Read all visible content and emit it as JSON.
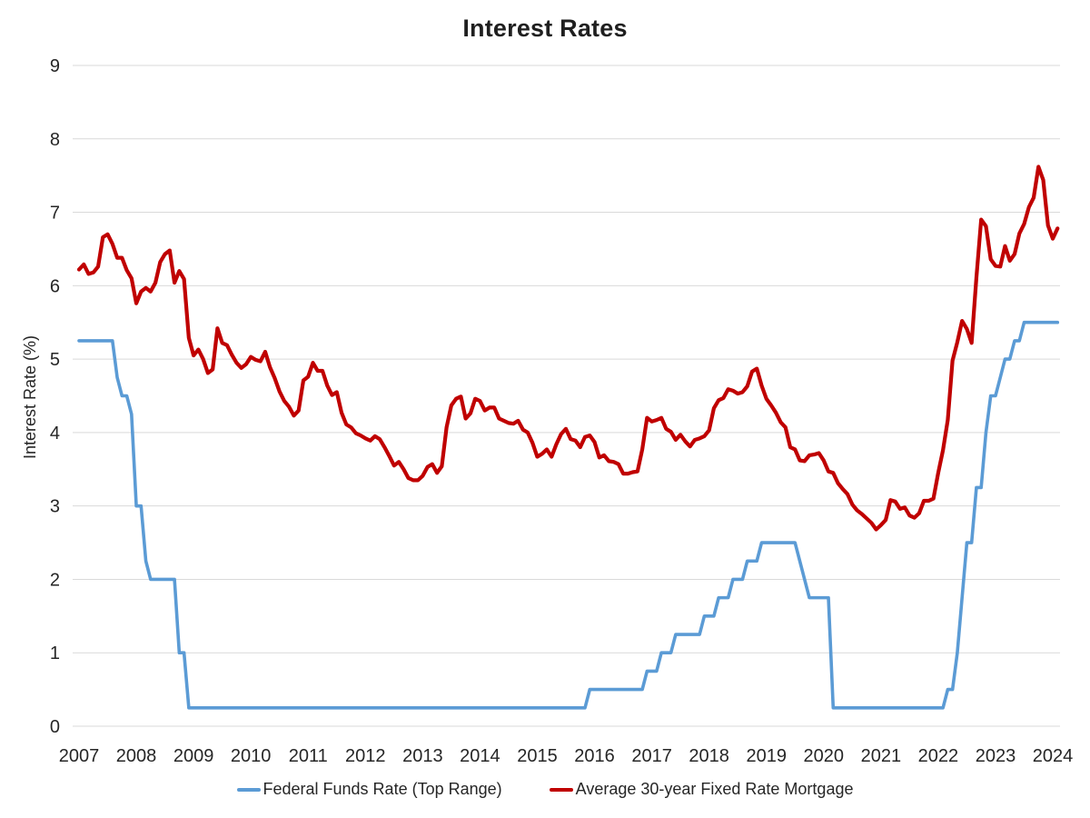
{
  "chart_data": {
    "type": "line",
    "title": "Interest Rates",
    "xlabel": "",
    "ylabel": "Interest Rate (%)",
    "ylim": [
      0,
      9
    ],
    "y_ticks": [
      0,
      1,
      2,
      3,
      4,
      5,
      6,
      7,
      8,
      9
    ],
    "x_ticks": [
      "2007",
      "2008",
      "2009",
      "2010",
      "2011",
      "2012",
      "2013",
      "2014",
      "2015",
      "2016",
      "2017",
      "2018",
      "2019",
      "2020",
      "2021",
      "2022",
      "2023",
      "2024"
    ],
    "x_unit": "monthly",
    "x_range": [
      "2007-01",
      "2024-02"
    ],
    "grid": "horizontal",
    "legend_position": "bottom",
    "background_color": "#ffffff",
    "gridline_color": "#d9d9d9",
    "text_color": "#262626",
    "series": [
      {
        "name": "Federal Funds Rate (Top Range)",
        "color": "#5b9bd5",
        "values": [
          5.25,
          5.25,
          5.25,
          5.25,
          5.25,
          5.25,
          5.25,
          5.25,
          4.75,
          4.5,
          4.5,
          4.25,
          3.0,
          3.0,
          2.25,
          2.0,
          2.0,
          2.0,
          2.0,
          2.0,
          2.0,
          1.0,
          1.0,
          0.25,
          0.25,
          0.25,
          0.25,
          0.25,
          0.25,
          0.25,
          0.25,
          0.25,
          0.25,
          0.25,
          0.25,
          0.25,
          0.25,
          0.25,
          0.25,
          0.25,
          0.25,
          0.25,
          0.25,
          0.25,
          0.25,
          0.25,
          0.25,
          0.25,
          0.25,
          0.25,
          0.25,
          0.25,
          0.25,
          0.25,
          0.25,
          0.25,
          0.25,
          0.25,
          0.25,
          0.25,
          0.25,
          0.25,
          0.25,
          0.25,
          0.25,
          0.25,
          0.25,
          0.25,
          0.25,
          0.25,
          0.25,
          0.25,
          0.25,
          0.25,
          0.25,
          0.25,
          0.25,
          0.25,
          0.25,
          0.25,
          0.25,
          0.25,
          0.25,
          0.25,
          0.25,
          0.25,
          0.25,
          0.25,
          0.25,
          0.25,
          0.25,
          0.25,
          0.25,
          0.25,
          0.25,
          0.25,
          0.25,
          0.25,
          0.25,
          0.25,
          0.25,
          0.25,
          0.25,
          0.25,
          0.25,
          0.25,
          0.25,
          0.5,
          0.5,
          0.5,
          0.5,
          0.5,
          0.5,
          0.5,
          0.5,
          0.5,
          0.5,
          0.5,
          0.5,
          0.75,
          0.75,
          0.75,
          1.0,
          1.0,
          1.0,
          1.25,
          1.25,
          1.25,
          1.25,
          1.25,
          1.25,
          1.5,
          1.5,
          1.5,
          1.75,
          1.75,
          1.75,
          2.0,
          2.0,
          2.0,
          2.25,
          2.25,
          2.25,
          2.5,
          2.5,
          2.5,
          2.5,
          2.5,
          2.5,
          2.5,
          2.5,
          2.25,
          2.0,
          1.75,
          1.75,
          1.75,
          1.75,
          1.75,
          0.25,
          0.25,
          0.25,
          0.25,
          0.25,
          0.25,
          0.25,
          0.25,
          0.25,
          0.25,
          0.25,
          0.25,
          0.25,
          0.25,
          0.25,
          0.25,
          0.25,
          0.25,
          0.25,
          0.25,
          0.25,
          0.25,
          0.25,
          0.25,
          0.5,
          0.5,
          1.0,
          1.75,
          2.5,
          2.5,
          3.25,
          3.25,
          4.0,
          4.5,
          4.5,
          4.75,
          5.0,
          5.0,
          5.25,
          5.25,
          5.5,
          5.5,
          5.5,
          5.5,
          5.5,
          5.5,
          5.5,
          5.5
        ]
      },
      {
        "name": "Average 30-year Fixed Rate Mortgage",
        "color": "#c00000",
        "values": [
          6.22,
          6.29,
          6.16,
          6.18,
          6.26,
          6.66,
          6.7,
          6.57,
          6.38,
          6.38,
          6.21,
          6.1,
          5.76,
          5.92,
          5.97,
          5.92,
          6.04,
          6.32,
          6.43,
          6.48,
          6.04,
          6.2,
          6.09,
          5.29,
          5.05,
          5.13,
          5.0,
          4.81,
          4.86,
          5.42,
          5.22,
          5.19,
          5.06,
          4.95,
          4.88,
          4.93,
          5.03,
          4.99,
          4.97,
          5.1,
          4.89,
          4.74,
          4.56,
          4.43,
          4.35,
          4.23,
          4.3,
          4.71,
          4.76,
          4.95,
          4.84,
          4.84,
          4.64,
          4.51,
          4.55,
          4.27,
          4.11,
          4.07,
          3.99,
          3.96,
          3.92,
          3.89,
          3.95,
          3.91,
          3.8,
          3.68,
          3.55,
          3.6,
          3.5,
          3.38,
          3.35,
          3.35,
          3.41,
          3.53,
          3.57,
          3.45,
          3.54,
          4.07,
          4.37,
          4.46,
          4.49,
          4.19,
          4.26,
          4.46,
          4.43,
          4.3,
          4.34,
          4.34,
          4.19,
          4.16,
          4.13,
          4.12,
          4.16,
          4.04,
          4.0,
          3.86,
          3.67,
          3.71,
          3.77,
          3.67,
          3.84,
          3.98,
          4.05,
          3.91,
          3.89,
          3.8,
          3.94,
          3.96,
          3.87,
          3.66,
          3.69,
          3.61,
          3.6,
          3.57,
          3.44,
          3.44,
          3.46,
          3.47,
          3.77,
          4.2,
          4.15,
          4.17,
          4.2,
          4.05,
          4.01,
          3.9,
          3.97,
          3.88,
          3.81,
          3.9,
          3.92,
          3.95,
          4.03,
          4.33,
          4.44,
          4.47,
          4.59,
          4.57,
          4.53,
          4.55,
          4.63,
          4.83,
          4.87,
          4.64,
          4.46,
          4.37,
          4.27,
          4.14,
          4.07,
          3.8,
          3.77,
          3.62,
          3.61,
          3.69,
          3.7,
          3.72,
          3.62,
          3.47,
          3.45,
          3.31,
          3.23,
          3.16,
          3.02,
          2.94,
          2.89,
          2.83,
          2.77,
          2.68,
          2.74,
          2.81,
          3.08,
          3.06,
          2.96,
          2.98,
          2.87,
          2.84,
          2.9,
          3.07,
          3.07,
          3.1,
          3.45,
          3.76,
          4.17,
          4.98,
          5.23,
          5.52,
          5.41,
          5.22,
          6.11,
          6.9,
          6.81,
          6.36,
          6.27,
          6.26,
          6.54,
          6.34,
          6.43,
          6.71,
          6.84,
          7.07,
          7.2,
          7.62,
          7.44,
          6.82,
          6.64,
          6.78
        ]
      }
    ]
  }
}
